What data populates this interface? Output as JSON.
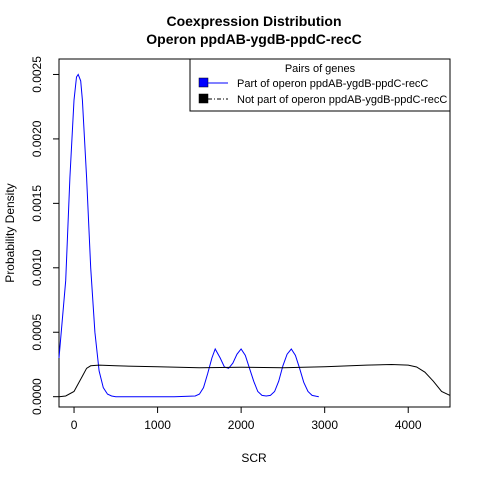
{
  "chart_data": {
    "type": "line",
    "title": "Coexpression Distribution",
    "subtitle": "Operon ppdAB-ygdB-ppdC-recC",
    "xlabel": "SCR",
    "ylabel": "Probability Density",
    "xlim": [
      -180,
      4500
    ],
    "ylim": [
      -8e-05,
      0.00262
    ],
    "x_ticks": [
      0,
      1000,
      2000,
      3000,
      4000
    ],
    "x_tick_labels": [
      "0",
      "1000",
      "2000",
      "3000",
      "4000"
    ],
    "y_ticks": [
      0.0,
      0.0005,
      0.001,
      0.0015,
      0.002,
      0.0025
    ],
    "y_tick_labels": [
      "0.0000",
      "0.0005",
      "0.0010",
      "0.0015",
      "0.0020",
      "0.0025"
    ],
    "legend": {
      "title": "Pairs of genes",
      "placement": "top-right",
      "entries": [
        "Part of operon ppdAB-ygdB-ppdC-recC",
        "Not part of operon ppdAB-ygdB-ppdC-recC"
      ]
    },
    "series": [
      {
        "name": "Part of operon ppdAB-ygdB-ppdC-recC",
        "color": "#0000ff",
        "line_style": "solid",
        "x": [
          -180,
          -100,
          -50,
          0,
          30,
          50,
          80,
          100,
          150,
          200,
          250,
          300,
          350,
          400,
          450,
          500,
          1200,
          1450,
          1500,
          1550,
          1600,
          1650,
          1690,
          1750,
          1800,
          1850,
          1900,
          1950,
          2000,
          2050,
          2100,
          2150,
          2200,
          2250,
          2300,
          2350,
          2400,
          2450,
          2500,
          2550,
          2600,
          2650,
          2700,
          2750,
          2800,
          2850,
          2900,
          2930
        ],
        "y": [
          0.0003,
          0.0009,
          0.0017,
          0.0023,
          0.00248,
          0.0025,
          0.00245,
          0.0023,
          0.0017,
          0.001,
          0.0005,
          0.0002,
          7e-05,
          2e-05,
          5e-06,
          0.0,
          0.0,
          5e-06,
          2e-05,
          7e-05,
          0.00018,
          0.0003,
          0.00037,
          0.0003,
          0.00023,
          0.00022,
          0.00026,
          0.00033,
          0.00037,
          0.00032,
          0.00022,
          0.00012,
          4e-05,
          1e-05,
          5e-06,
          1e-05,
          4e-05,
          0.00012,
          0.00024,
          0.00033,
          0.00037,
          0.00032,
          0.00022,
          0.00011,
          4e-05,
          1e-05,
          3e-06,
          0.0
        ]
      },
      {
        "name": "Not part of operon ppdAB-ygdB-ppdC-recC",
        "color": "#000000",
        "line_style": "solid",
        "x": [
          -180,
          -100,
          0,
          100,
          150,
          200,
          300,
          500,
          1000,
          1500,
          2000,
          2500,
          3000,
          3500,
          3800,
          4000,
          4100,
          4200,
          4300,
          4400,
          4500
        ],
        "y": [
          0.0,
          5e-06,
          4e-05,
          0.00016,
          0.00022,
          0.00024,
          0.000245,
          0.00024,
          0.000232,
          0.000225,
          0.000228,
          0.000225,
          0.000232,
          0.000245,
          0.00025,
          0.000245,
          0.00023,
          0.00019,
          0.00012,
          4e-05,
          1e-05
        ]
      }
    ]
  }
}
